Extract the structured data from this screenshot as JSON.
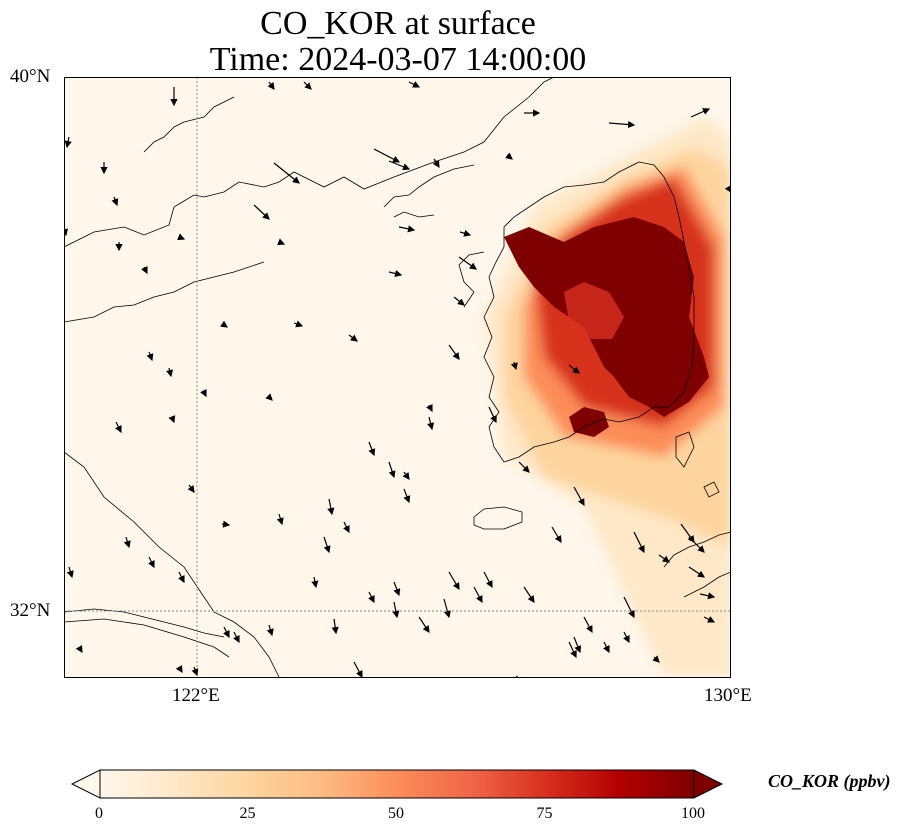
{
  "title": {
    "line1": "CO_KOR at surface",
    "line2": "Time: 2024-03-07 14:00:00"
  },
  "axes": {
    "lat_ticks": [
      {
        "label": "40°N",
        "lat": 40
      },
      {
        "label": "32°N",
        "lat": 32
      }
    ],
    "lon_ticks": [
      {
        "label": "122°E",
        "lon": 122
      },
      {
        "label": "130°E",
        "lon": 130
      }
    ],
    "lon_range": [
      120,
      130
    ],
    "lat_range": [
      31,
      40
    ],
    "gridlines": "dotted"
  },
  "colorbar": {
    "label": "CO_KOR (ppbv)",
    "colormap": "OrRd",
    "range": [
      0,
      100
    ],
    "extend": "both",
    "ticks": [
      "0",
      "25",
      "50",
      "75",
      "100"
    ],
    "colors": [
      "#fff7ec",
      "#fee8c8",
      "#fdd49e",
      "#fdbb84",
      "#fc8d59",
      "#ef6548",
      "#d7301f",
      "#b30000",
      "#7f0000"
    ]
  }
}
